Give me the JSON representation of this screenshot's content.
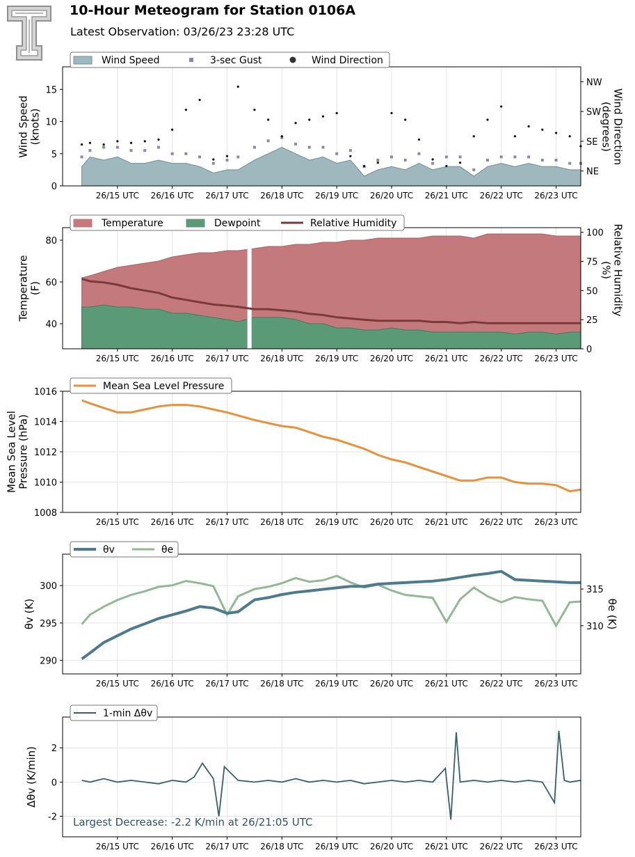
{
  "header": {
    "title": "10-Hour Meteogram for Station 0106A",
    "subtitle": "Latest Observation: 03/26/23 23:28 UTC",
    "logo": "texas-tech-double-t-logo"
  },
  "colors": {
    "wind_speed": "#9fb8be",
    "wind_speed_edge": "#6f8f94",
    "gust": "#8f86a8",
    "wind_dir": "#111111",
    "temperature": "#c47a7c",
    "dewpoint": "#5b9a76",
    "rh": "#7a3a3c",
    "pressure": "#e8913a",
    "theta_v": "#4e7a8e",
    "theta_e": "#93b894",
    "dtheta": "#355f6e",
    "annotation": "#2b5470"
  },
  "time_ticks": [
    "26/15 UTC",
    "26/16 UTC",
    "26/17 UTC",
    "26/18 UTC",
    "26/19 UTC",
    "26/20 UTC",
    "26/21 UTC",
    "26/22 UTC",
    "26/23 UTC"
  ],
  "chart_data": [
    {
      "id": "wind",
      "type": "area",
      "ylabel": [
        "Wind Speed",
        "(knots)"
      ],
      "ylabel_right": [
        "Wind Direction",
        "(degrees)"
      ],
      "yticks": [
        0,
        5,
        10,
        15
      ],
      "yticks_right": [
        "NE",
        "SE",
        "SW",
        "NW"
      ],
      "legend": [
        "Wind Speed",
        "3-sec Gust",
        "Wind Direction"
      ],
      "x_hours": [
        14.35,
        14.5,
        14.75,
        15.0,
        15.25,
        15.5,
        15.75,
        16.0,
        16.25,
        16.5,
        16.75,
        17.0,
        17.2,
        17.5,
        17.75,
        18.0,
        18.25,
        18.5,
        18.75,
        19.0,
        19.25,
        19.5,
        19.75,
        20.0,
        20.25,
        20.5,
        20.75,
        21.0,
        21.25,
        21.5,
        21.75,
        22.0,
        22.25,
        22.5,
        22.75,
        23.0,
        23.25,
        23.45
      ],
      "wind_speed": [
        3.0,
        4.5,
        4.0,
        4.5,
        3.5,
        3.5,
        4.0,
        3.5,
        3.5,
        3.0,
        2.0,
        2.5,
        2.5,
        4.0,
        5.0,
        6.0,
        5.0,
        4.0,
        4.5,
        3.5,
        4.0,
        1.5,
        2.5,
        3.0,
        2.5,
        3.5,
        2.5,
        3.0,
        3.0,
        1.5,
        3.0,
        3.5,
        3.0,
        3.5,
        3.0,
        3.0,
        2.5,
        2.5
      ],
      "gust": [
        4.5,
        5.5,
        6.0,
        6.0,
        5.5,
        5.5,
        6.0,
        5.0,
        5.0,
        4.5,
        3.5,
        4.0,
        4.5,
        6.0,
        7.0,
        7.5,
        6.5,
        6.0,
        6.0,
        5.0,
        5.5,
        3.0,
        4.0,
        4.5,
        4.0,
        5.0,
        3.5,
        4.5,
        4.5,
        2.5,
        4.0,
        4.5,
        4.5,
        4.5,
        4.0,
        4.0,
        3.5,
        3.5
      ],
      "wind_dir_deg": [
        125,
        130,
        125,
        135,
        130,
        135,
        140,
        170,
        230,
        260,
        80,
        90,
        300,
        230,
        200,
        150,
        190,
        200,
        210,
        220,
        90,
        60,
        70,
        220,
        200,
        140,
        80,
        60,
        70,
        150,
        200,
        240,
        150,
        180,
        170,
        160,
        150,
        120
      ]
    },
    {
      "id": "thermo",
      "type": "area",
      "ylabel": [
        "Temperature",
        "(F)"
      ],
      "ylabel_right": [
        "Relative Humidity",
        "(%)"
      ],
      "yticks": [
        40,
        60,
        80
      ],
      "yticks_right": [
        0,
        25,
        50,
        75,
        100
      ],
      "legend": [
        "Temperature",
        "Dewpoint",
        "Relative Humidity"
      ],
      "x_hours": [
        14.35,
        14.5,
        14.75,
        15.0,
        15.25,
        15.5,
        15.75,
        16.0,
        16.25,
        16.5,
        16.75,
        17.0,
        17.2,
        17.5,
        17.75,
        18.0,
        18.25,
        18.5,
        18.75,
        19.0,
        19.25,
        19.5,
        19.75,
        20.0,
        20.25,
        20.5,
        20.75,
        21.0,
        21.25,
        21.5,
        21.75,
        22.0,
        22.25,
        22.5,
        22.75,
        23.0,
        23.25,
        23.45
      ],
      "temperature": [
        62,
        63,
        65,
        67,
        68,
        69,
        70,
        72,
        73,
        74,
        74,
        75,
        75,
        76,
        77,
        77,
        78,
        78,
        79,
        79,
        80,
        80,
        81,
        81,
        81,
        81,
        82,
        82,
        82,
        81,
        83,
        83,
        83,
        83,
        83,
        82,
        82,
        82
      ],
      "dewpoint": [
        48,
        48,
        49,
        48,
        48,
        47,
        47,
        45,
        45,
        44,
        43,
        42,
        41,
        43,
        43,
        43,
        42,
        40,
        40,
        38,
        38,
        37,
        37,
        38,
        37,
        37,
        36,
        36,
        36,
        36,
        36,
        36,
        35,
        36,
        36,
        35,
        36,
        36
      ],
      "rh": [
        60,
        58,
        57,
        55,
        52,
        50,
        48,
        44,
        42,
        40,
        38,
        37,
        36,
        34,
        34,
        33,
        32,
        30,
        29,
        27,
        26,
        25,
        24,
        24,
        24,
        24,
        23,
        23,
        22,
        23,
        22,
        22,
        22,
        22,
        22,
        22,
        22,
        22
      ]
    },
    {
      "id": "pressure",
      "type": "line",
      "ylabel": [
        "Mean Sea Level",
        "Pressure (hPa)"
      ],
      "yticks": [
        1008,
        1010,
        1012,
        1014,
        1016
      ],
      "legend": [
        "Mean Sea Level Pressure"
      ],
      "x_hours": [
        14.35,
        14.5,
        14.75,
        15.0,
        15.25,
        15.5,
        15.75,
        16.0,
        16.25,
        16.5,
        16.75,
        17.0,
        17.2,
        17.5,
        17.75,
        18.0,
        18.25,
        18.5,
        18.75,
        19.0,
        19.25,
        19.5,
        19.75,
        20.0,
        20.25,
        20.5,
        20.75,
        21.0,
        21.25,
        21.5,
        21.75,
        22.0,
        22.25,
        22.5,
        22.75,
        23.0,
        23.25,
        23.45
      ],
      "values": [
        1015.4,
        1015.2,
        1014.9,
        1014.6,
        1014.6,
        1014.8,
        1015.0,
        1015.1,
        1015.1,
        1015.0,
        1014.8,
        1014.6,
        1014.4,
        1014.1,
        1013.9,
        1013.7,
        1013.6,
        1013.3,
        1013.0,
        1012.8,
        1012.5,
        1012.2,
        1011.8,
        1011.5,
        1011.3,
        1011.0,
        1010.7,
        1010.4,
        1010.1,
        1010.1,
        1010.3,
        1010.3,
        1010.0,
        1009.9,
        1009.9,
        1009.8,
        1009.4,
        1009.5
      ]
    },
    {
      "id": "theta",
      "type": "line",
      "ylabel": [
        "θv (K)"
      ],
      "ylabel_right": [
        "θe (K)"
      ],
      "yticks": [
        290,
        295,
        300
      ],
      "yticks_right": [
        310,
        315
      ],
      "legend": [
        "θv",
        "θe"
      ],
      "x_hours": [
        14.35,
        14.5,
        14.75,
        15.0,
        15.25,
        15.5,
        15.75,
        16.0,
        16.25,
        16.5,
        16.75,
        17.0,
        17.2,
        17.5,
        17.75,
        18.0,
        18.25,
        18.5,
        18.75,
        19.0,
        19.25,
        19.5,
        19.75,
        20.0,
        20.25,
        20.5,
        20.75,
        21.0,
        21.25,
        21.5,
        21.75,
        22.0,
        22.25,
        22.5,
        22.75,
        23.0,
        23.25,
        23.45
      ],
      "theta_v": [
        290.2,
        291.0,
        292.4,
        293.3,
        294.2,
        294.9,
        295.6,
        296.1,
        296.6,
        297.2,
        297.0,
        296.3,
        296.5,
        298.1,
        298.4,
        298.8,
        299.1,
        299.3,
        299.5,
        299.7,
        299.9,
        299.9,
        300.2,
        300.3,
        300.4,
        300.5,
        300.6,
        300.8,
        301.1,
        301.4,
        301.6,
        301.9,
        300.8,
        300.7,
        300.6,
        300.5,
        300.4,
        300.4
      ],
      "theta_e": [
        310.2,
        311.5,
        312.6,
        313.5,
        314.2,
        314.7,
        315.3,
        315.5,
        316.1,
        315.8,
        315.4,
        311.5,
        314.0,
        315.0,
        315.3,
        315.8,
        316.5,
        316.0,
        316.2,
        316.8,
        315.9,
        315.2,
        315.6,
        314.8,
        314.2,
        314.0,
        313.8,
        310.5,
        313.6,
        315.2,
        314.0,
        313.2,
        313.9,
        313.6,
        313.4,
        310.0,
        313.2,
        313.3
      ]
    },
    {
      "id": "dtheta",
      "type": "line",
      "ylabel": [
        "Δθv (K/min)"
      ],
      "yticks": [
        -2,
        0,
        2
      ],
      "legend": [
        "1-min Δθv"
      ],
      "annotation": "Largest Decrease: -2.2 K/min at 26/21:05 UTC",
      "x_hours": [
        14.35,
        14.5,
        14.75,
        15.0,
        15.25,
        15.5,
        15.75,
        16.0,
        16.25,
        16.4,
        16.55,
        16.75,
        16.85,
        16.95,
        17.2,
        17.5,
        17.75,
        18.0,
        18.25,
        18.5,
        18.75,
        19.0,
        19.25,
        19.5,
        19.75,
        20.0,
        20.25,
        20.5,
        20.75,
        20.98,
        21.08,
        21.18,
        21.25,
        21.5,
        21.75,
        22.0,
        22.25,
        22.5,
        22.75,
        22.97,
        23.05,
        23.15,
        23.25,
        23.45
      ],
      "values": [
        0.1,
        0.0,
        0.2,
        0.0,
        0.1,
        0.0,
        -0.1,
        0.1,
        0.0,
        0.3,
        1.1,
        0.2,
        -2.0,
        0.9,
        0.1,
        0.0,
        0.1,
        0.0,
        0.2,
        0.0,
        0.1,
        0.0,
        0.1,
        -0.1,
        0.0,
        0.1,
        0.0,
        0.1,
        0.0,
        0.8,
        -2.2,
        2.9,
        0.0,
        0.1,
        0.0,
        0.1,
        0.0,
        0.1,
        0.0,
        -1.2,
        3.0,
        0.1,
        0.0,
        0.1
      ]
    }
  ]
}
